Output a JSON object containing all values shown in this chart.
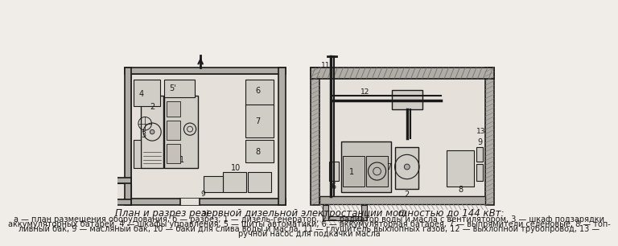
{
  "title": "План и разрез резервной дизельной электростанции мощностью до 144 кВт:",
  "caption_line1": "а — план размещения оборудования, б — разрез; 1 — дизель-генератор, 2 — радиатор воды и масла с вентилятором, 3 — шкаф подзарядки",
  "caption_line2": "аккумуляторных батарей, 4 — шкафы управления, 5 — щиты автоматики, 6 — аккумуляторная батарея, 7 — выпрямители селеновые, 8 — топ-",
  "caption_line3": "ливный бак, 9 — масляный бак, 10 — баки для слива воды и масла, 11 — глушитель выхлопных газов, 12 — выхлопной трубопровод, 13 —",
  "caption_line4": "ручной насос для подкачки масла",
  "label_a": "а)",
  "label_b": "б)",
  "bg_color": "#f0ede8",
  "line_color": "#1a1a1a",
  "wall_color": "#888888",
  "hatch_color": "#555555",
  "font_size_caption": 7.0,
  "font_size_title": 8.5,
  "font_size_labels": 7.0
}
